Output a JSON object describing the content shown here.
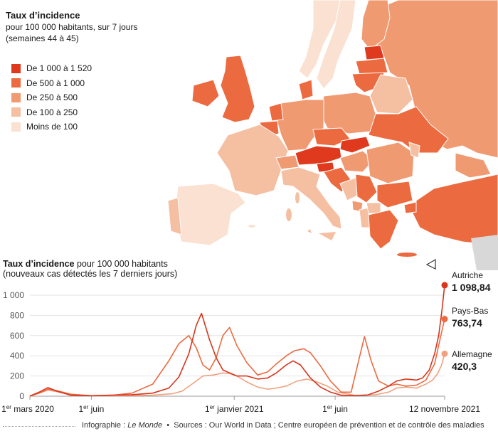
{
  "map": {
    "title": "Taux d’incidence",
    "subtitle_line1": "pour 100 000 habitants, sur 7 jours",
    "subtitle_line2": "(semaines 44 à 45)",
    "legend": [
      {
        "label": "De 1 000 à 1 520",
        "color": "#e03a1e"
      },
      {
        "label": "De 500 à 1 000",
        "color": "#ec6a40"
      },
      {
        "label": "De 250 à 500",
        "color": "#f09a72"
      },
      {
        "label": "De 100 à 250",
        "color": "#f5bfa2"
      },
      {
        "label": "Moins de 100",
        "color": "#fae1d2"
      }
    ]
  },
  "chart_title_bold": "Taux d’incidence",
  "chart_title_rest": " pour 100 000 habitants",
  "chart_subtitle": "(nouveaux cas détectés les 7 derniers jours)",
  "chart_data": {
    "type": "line",
    "title": "Taux d’incidence pour 100 000 habitants",
    "subtitle": "(nouveaux cas détectés les 7 derniers jours)",
    "ylim": [
      0,
      1100
    ],
    "yticks": [
      0,
      200,
      400,
      600,
      800,
      1000
    ],
    "ytick_labels": [
      "0",
      "200",
      "400",
      "600",
      "800",
      "1 000"
    ],
    "xlim": [
      "2020-03-01",
      "2021-11-12"
    ],
    "xticks": [
      {
        "date": "2020-03-01",
        "label": "1er mars 2020"
      },
      {
        "date": "2020-06-01",
        "label": "1er juin"
      },
      {
        "date": "2021-01-01",
        "label": "1er janvier 2021"
      },
      {
        "date": "2021-06-01",
        "label": "1er juin"
      },
      {
        "date": "2021-11-12",
        "label": "12 novembre 2021"
      }
    ],
    "grid": true,
    "series": [
      {
        "name": "Autriche",
        "color": "#d9341c",
        "end_value": 1098.84,
        "end_label": "1 098,84",
        "x": [
          "2020-03-01",
          "2020-03-15",
          "2020-03-28",
          "2020-04-10",
          "2020-05-01",
          "2020-06-01",
          "2020-07-01",
          "2020-08-01",
          "2020-09-01",
          "2020-09-25",
          "2020-10-10",
          "2020-10-25",
          "2020-11-05",
          "2020-11-13",
          "2020-11-25",
          "2020-12-05",
          "2020-12-15",
          "2020-12-25",
          "2021-01-05",
          "2021-01-20",
          "2021-02-05",
          "2021-02-20",
          "2021-03-05",
          "2021-03-20",
          "2021-03-30",
          "2021-04-10",
          "2021-04-25",
          "2021-05-10",
          "2021-05-25",
          "2021-06-10",
          "2021-07-01",
          "2021-07-20",
          "2021-08-05",
          "2021-08-20",
          "2021-09-01",
          "2021-09-15",
          "2021-10-01",
          "2021-10-10",
          "2021-10-20",
          "2021-10-28",
          "2021-11-03",
          "2021-11-08",
          "2021-11-12"
        ],
        "values": [
          2,
          40,
          85,
          50,
          10,
          5,
          10,
          15,
          30,
          80,
          190,
          420,
          700,
          820,
          560,
          380,
          260,
          230,
          200,
          200,
          170,
          180,
          230,
          310,
          350,
          310,
          180,
          90,
          40,
          10,
          5,
          12,
          50,
          100,
          150,
          170,
          160,
          180,
          260,
          420,
          600,
          850,
          1098.84
        ]
      },
      {
        "name": "Pays-Bas",
        "color": "#ec6a40",
        "end_value": 763.74,
        "end_label": "763,74",
        "x": [
          "2020-03-01",
          "2020-03-15",
          "2020-03-28",
          "2020-04-10",
          "2020-05-01",
          "2020-06-01",
          "2020-07-01",
          "2020-08-01",
          "2020-09-01",
          "2020-09-25",
          "2020-10-10",
          "2020-10-25",
          "2020-11-05",
          "2020-11-15",
          "2020-11-25",
          "2020-12-05",
          "2020-12-15",
          "2020-12-25",
          "2021-01-05",
          "2021-01-20",
          "2021-02-05",
          "2021-02-20",
          "2021-03-05",
          "2021-03-20",
          "2021-04-01",
          "2021-04-15",
          "2021-04-25",
          "2021-05-10",
          "2021-05-25",
          "2021-06-10",
          "2021-06-25",
          "2021-07-05",
          "2021-07-15",
          "2021-07-25",
          "2021-08-05",
          "2021-08-20",
          "2021-09-01",
          "2021-09-15",
          "2021-10-01",
          "2021-10-15",
          "2021-10-28",
          "2021-11-05",
          "2021-11-12"
        ],
        "values": [
          2,
          30,
          70,
          55,
          20,
          5,
          8,
          30,
          120,
          350,
          520,
          600,
          480,
          310,
          260,
          380,
          600,
          680,
          500,
          330,
          210,
          240,
          320,
          400,
          450,
          470,
          430,
          300,
          150,
          40,
          40,
          320,
          590,
          350,
          150,
          100,
          120,
          100,
          110,
          160,
          320,
          560,
          763.74
        ]
      },
      {
        "name": "Allemagne",
        "color": "#f0a27e",
        "end_value": 420.3,
        "end_label": "420,3",
        "x": [
          "2020-03-01",
          "2020-03-15",
          "2020-03-28",
          "2020-04-10",
          "2020-05-01",
          "2020-06-01",
          "2020-07-01",
          "2020-08-01",
          "2020-09-01",
          "2020-10-01",
          "2020-10-15",
          "2020-11-01",
          "2020-11-15",
          "2020-12-01",
          "2020-12-15",
          "2020-12-25",
          "2021-01-05",
          "2021-01-20",
          "2021-02-05",
          "2021-02-20",
          "2021-03-05",
          "2021-03-20",
          "2021-04-05",
          "2021-04-20",
          "2021-05-05",
          "2021-05-20",
          "2021-06-05",
          "2021-07-01",
          "2021-08-01",
          "2021-08-20",
          "2021-09-01",
          "2021-09-15",
          "2021-10-01",
          "2021-10-15",
          "2021-10-25",
          "2021-11-01",
          "2021-11-07",
          "2021-11-12"
        ],
        "values": [
          2,
          30,
          60,
          45,
          15,
          5,
          4,
          8,
          10,
          25,
          50,
          130,
          200,
          210,
          230,
          225,
          200,
          140,
          90,
          70,
          80,
          100,
          150,
          170,
          140,
          100,
          40,
          8,
          15,
          40,
          80,
          90,
          80,
          120,
          160,
          220,
          300,
          420.3
        ]
      }
    ]
  },
  "footer": {
    "credit_prefix": "Infographie : ",
    "credit_name": "Le Monde",
    "separator": "•",
    "sources": "Sources : Our World in Data ; Centre européen de prévention et de contrôle des maladies"
  }
}
